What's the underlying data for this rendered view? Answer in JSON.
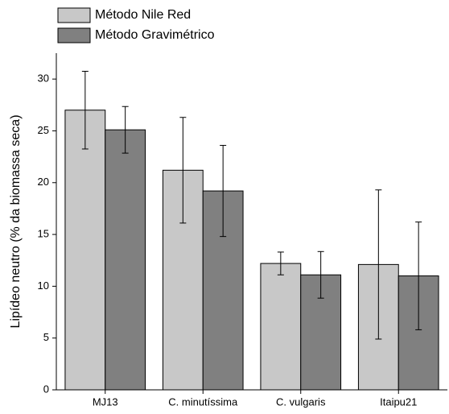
{
  "chart_data": {
    "type": "bar",
    "y_label": "Lipídeo neutro (% da biomassa seca)",
    "categories": [
      "MJ13",
      "C. minutíssima",
      "C. vulgaris",
      "Itaipu21"
    ],
    "series": [
      {
        "name": "Método Nile Red",
        "color": "#c8c8c8",
        "values": [
          27.0,
          21.2,
          12.2,
          12.1
        ],
        "errors": [
          3.75,
          5.1,
          1.1,
          7.2
        ]
      },
      {
        "name": "Método Gravimétrico",
        "color": "#808080",
        "values": [
          25.1,
          19.2,
          11.1,
          11.0
        ],
        "errors": [
          2.25,
          4.4,
          2.25,
          5.2
        ]
      }
    ],
    "ylim": [
      0,
      32.5
    ],
    "yticks": [
      0,
      5,
      10,
      15,
      20,
      25,
      30
    ],
    "grid": false
  }
}
